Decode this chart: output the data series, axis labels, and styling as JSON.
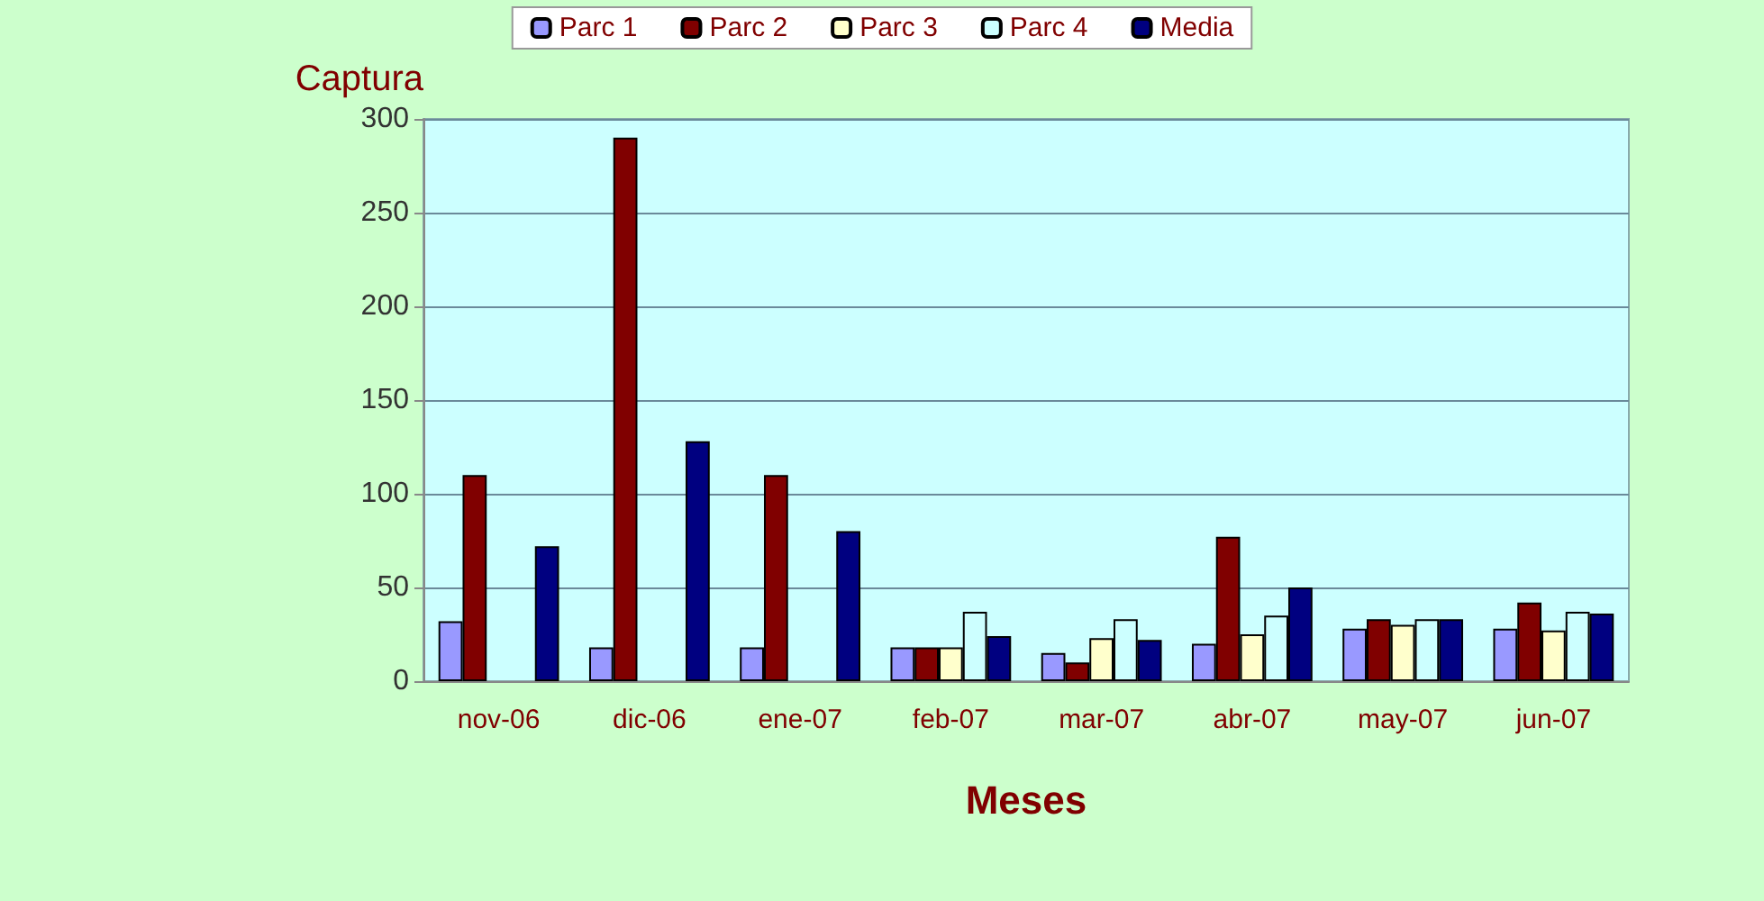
{
  "chart_data": {
    "type": "bar",
    "xlabel": "Meses",
    "ylabel": "Captura",
    "categories": [
      "nov-06",
      "dic-06",
      "ene-07",
      "feb-07",
      "mar-07",
      "abr-07",
      "may-07",
      "jun-07"
    ],
    "series": [
      {
        "name": "Parc 1",
        "color": "#9999ff",
        "values": [
          32,
          18,
          18,
          18,
          15,
          20,
          28,
          28
        ]
      },
      {
        "name": "Parc 2",
        "color": "#800000",
        "values": [
          110,
          290,
          110,
          18,
          10,
          77,
          33,
          42
        ]
      },
      {
        "name": "Parc 3",
        "color": "#ffffcc",
        "values": [
          null,
          null,
          null,
          18,
          23,
          25,
          30,
          27
        ]
      },
      {
        "name": "Parc 4",
        "color": "#ccffff",
        "values": [
          null,
          null,
          null,
          37,
          33,
          35,
          33,
          37
        ]
      },
      {
        "name": "Media",
        "color": "#000080",
        "values": [
          72,
          128,
          80,
          24,
          22,
          50,
          33,
          36
        ]
      }
    ],
    "ylim": [
      0,
      300
    ],
    "yticks": [
      0,
      50,
      100,
      150,
      200,
      250,
      300
    ],
    "grid": "y",
    "legend": "top"
  }
}
